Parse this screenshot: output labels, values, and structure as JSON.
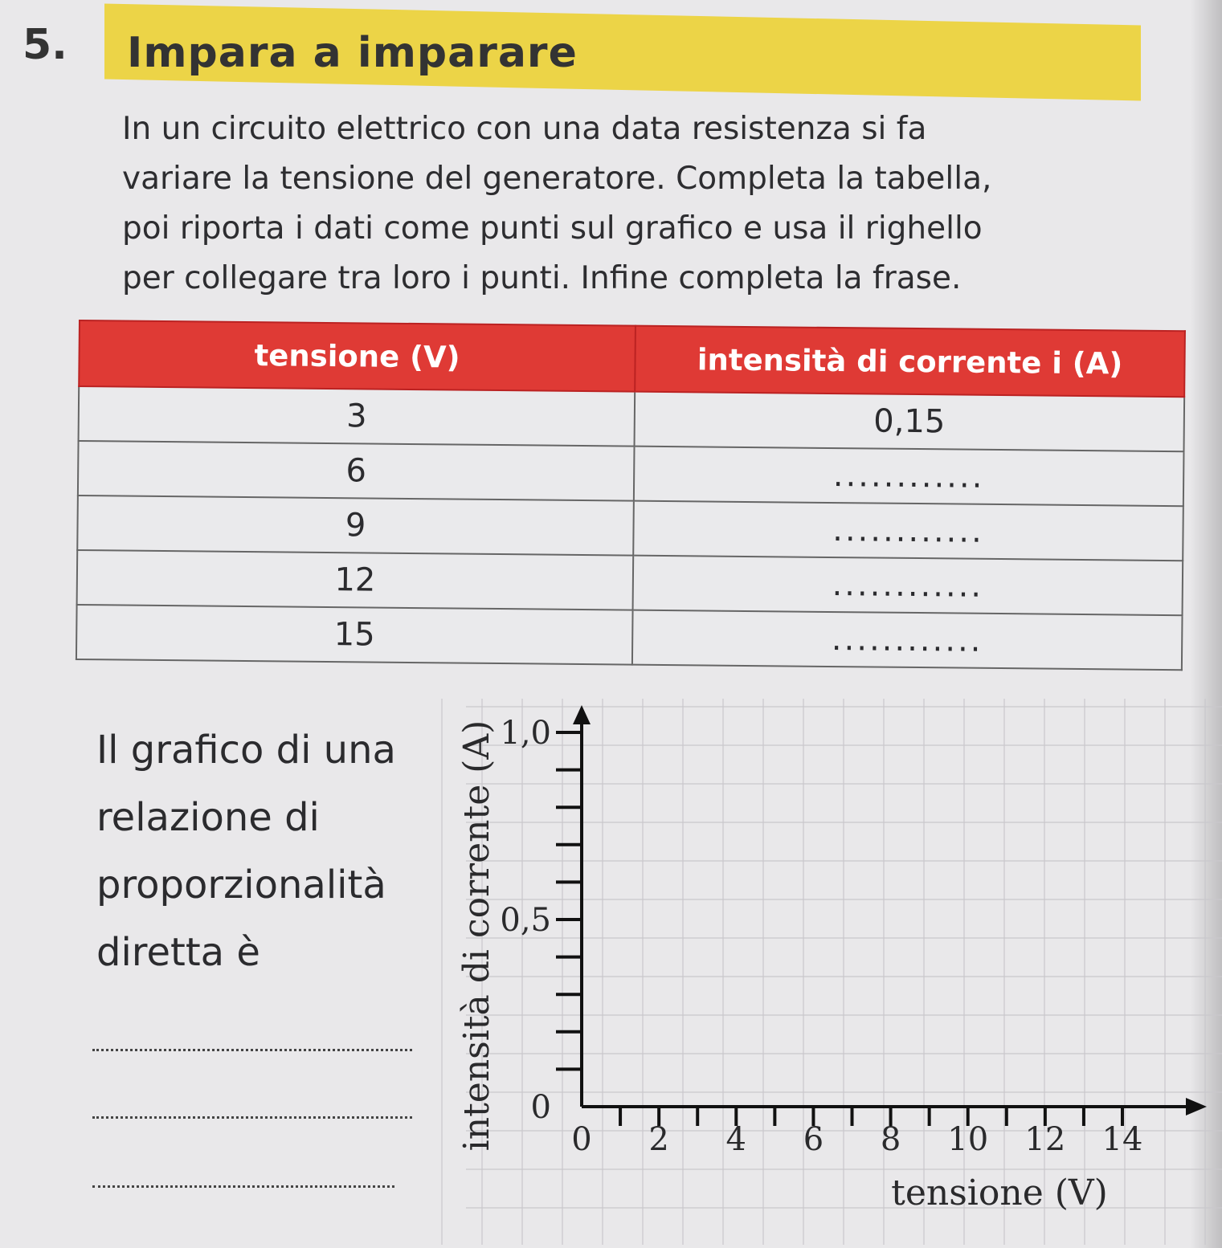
{
  "exercise": {
    "number": "5.",
    "title": "Impara a imparare",
    "band_color": "#ecd447"
  },
  "instructions": [
    "In un circuito elettrico con una data resistenza si fa",
    "variare la tensione del generatore. Completa la tabella,",
    "poi riporta i dati come punti sul grafico e usa il righello",
    "per collegare tra loro i punti. Infine completa la frase."
  ],
  "table": {
    "header_color": "#df3a35",
    "headers": [
      "tensione (V)",
      "intensità di corrente i (A)"
    ],
    "rows": [
      {
        "voltage": "3",
        "current": "0,15"
      },
      {
        "voltage": "6",
        "current": "............"
      },
      {
        "voltage": "9",
        "current": "............"
      },
      {
        "voltage": "12",
        "current": "............"
      },
      {
        "voltage": "15",
        "current": "............"
      }
    ]
  },
  "sentence": {
    "lines": [
      "Il grafico di una",
      "relazione di",
      "proporzionalità",
      "diretta è"
    ]
  },
  "chart_data": {
    "type": "scatter",
    "xlabel": "tensione (V)",
    "ylabel": "intensità di corrente (A)",
    "xlim": [
      0,
      15
    ],
    "ylim": [
      0,
      1.0
    ],
    "x_ticks": [
      0,
      2,
      4,
      6,
      8,
      10,
      12,
      14
    ],
    "x_tick_labels": [
      "0",
      "2",
      "4",
      "6",
      "8",
      "10",
      "12",
      "14"
    ],
    "y_tick_labels": [
      {
        "value": 1.0,
        "label": "1,0"
      },
      {
        "value": 0.5,
        "label": "0,5"
      },
      {
        "value": 0,
        "label": "0"
      }
    ],
    "x_minor_step": 1,
    "y_minor_step": 0.1,
    "grid": true,
    "series": []
  }
}
